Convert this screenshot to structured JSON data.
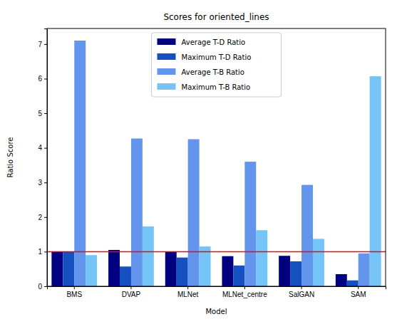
{
  "chart_data": {
    "type": "bar",
    "title": "Scores for oriented_lines",
    "x_label": "Model",
    "y_label": "Ratio Score",
    "categories": [
      "BMS",
      "DVAP",
      "MLNet",
      "MLNet_centre",
      "SalGAN",
      "SAM"
    ],
    "series": [
      {
        "name": "Average T-D Ratio",
        "color": "#000080",
        "values": [
          1.0,
          1.05,
          1.0,
          0.87,
          0.88,
          0.35
        ]
      },
      {
        "name": "Maximum T-D Ratio",
        "color": "#1450c0",
        "values": [
          1.0,
          0.57,
          0.83,
          0.6,
          0.72,
          0.17
        ]
      },
      {
        "name": "Average T-B Ratio",
        "color": "#6495ed",
        "values": [
          7.1,
          4.27,
          4.25,
          3.6,
          2.93,
          0.95
        ]
      },
      {
        "name": "Maximum T-B Ratio",
        "color": "#74c4f8",
        "values": [
          0.9,
          1.73,
          1.15,
          1.62,
          1.37,
          6.07
        ]
      }
    ],
    "reference_line": {
      "value": 1,
      "color": "#ff0000"
    },
    "ylim": [
      0,
      7.45
    ],
    "yticks": [
      0,
      1,
      2,
      3,
      4,
      5,
      6,
      7
    ],
    "legend": "upper center"
  }
}
